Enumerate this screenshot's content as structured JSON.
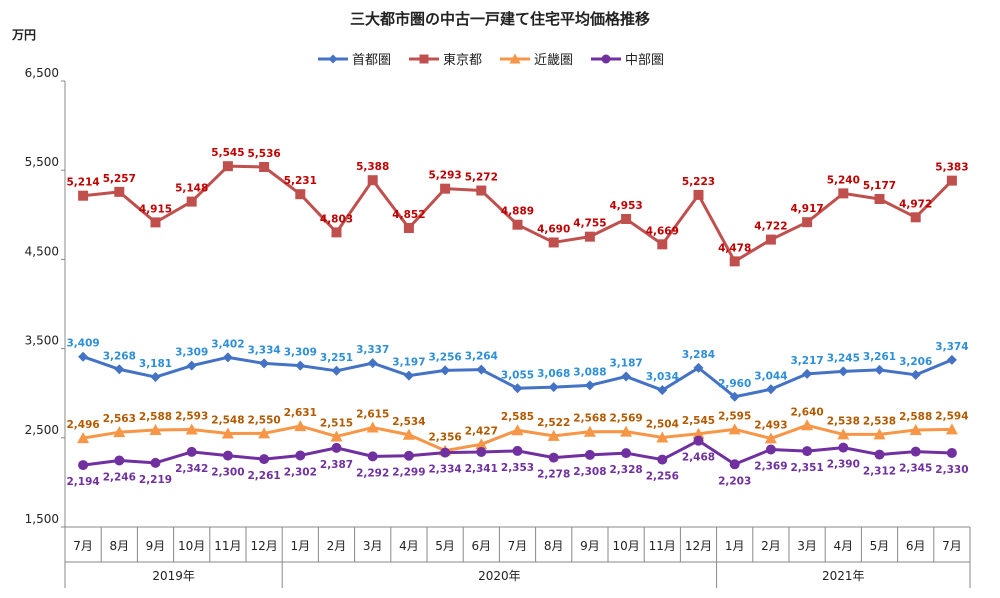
{
  "chart_data": {
    "type": "line",
    "title": "三大都市圏の中古一戸建て住宅平均価格推移",
    "y_unit": "万円",
    "ylim": [
      1500,
      6500
    ],
    "yticks": [
      "1,500",
      "2,500",
      "3,500",
      "4,500",
      "5,500",
      "6,500"
    ],
    "ytick_values": [
      1500,
      2500,
      3500,
      4500,
      5500,
      6500
    ],
    "months": [
      "7月",
      "8月",
      "9月",
      "10月",
      "11月",
      "12月",
      "1月",
      "2月",
      "3月",
      "4月",
      "5月",
      "6月",
      "7月",
      "8月",
      "9月",
      "10月",
      "11月",
      "12月",
      "1月",
      "2月",
      "3月",
      "4月",
      "5月",
      "6月",
      "7月"
    ],
    "years": [
      {
        "label": "2019年",
        "start": 0,
        "end": 5
      },
      {
        "label": "2020年",
        "start": 6,
        "end": 17
      },
      {
        "label": "2021年",
        "start": 18,
        "end": 24
      }
    ],
    "legend_position": "top",
    "series": [
      {
        "name": "首都圏",
        "color": "#4472C4",
        "label_color": "#2E8FD8",
        "marker": "diamond",
        "label_pos": "above",
        "values": [
          3409,
          3268,
          3181,
          3309,
          3402,
          3334,
          3309,
          3251,
          3337,
          3197,
          3256,
          3264,
          3055,
          3068,
          3088,
          3187,
          3034,
          3284,
          2960,
          3044,
          3217,
          3245,
          3261,
          3206,
          3374
        ],
        "labels": [
          "3,409",
          "3,268",
          "3,181",
          "3,309",
          "3,402",
          "3,334",
          "3,309",
          "3,251",
          "3,337",
          "3,197",
          "3,256",
          "3,264",
          "3,055",
          "3,068",
          "3,088",
          "3,187",
          "3,034",
          "3,284",
          "2,960",
          "3,044",
          "3,217",
          "3,245",
          "3,261",
          "3,206",
          "3,374"
        ]
      },
      {
        "name": "東京都",
        "color": "#C0504D",
        "label_color": "#C00000",
        "marker": "square",
        "label_pos": "above",
        "values": [
          5214,
          5257,
          4915,
          5148,
          5545,
          5536,
          5231,
          4803,
          5388,
          4852,
          5293,
          5272,
          4889,
          4690,
          4755,
          4953,
          4669,
          5223,
          4478,
          4722,
          4917,
          5240,
          5177,
          4972,
          5383
        ],
        "labels": [
          "5,214",
          "5,257",
          "4,915",
          "5,148",
          "5,545",
          "5,536",
          "5,231",
          "4,803",
          "5,388",
          "4,852",
          "5,293",
          "5,272",
          "4,889",
          "4,690",
          "4,755",
          "4,953",
          "4,669",
          "5,223",
          "4,478",
          "4,722",
          "4,917",
          "5,240",
          "5,177",
          "4,972",
          "5,383"
        ]
      },
      {
        "name": "近畿圏",
        "color": "#F79646",
        "label_color": "#B35A00",
        "marker": "triangle",
        "label_pos": "above",
        "values": [
          2496,
          2563,
          2588,
          2593,
          2548,
          2550,
          2631,
          2515,
          2615,
          2534,
          2356,
          2427,
          2585,
          2522,
          2568,
          2569,
          2504,
          2545,
          2595,
          2493,
          2640,
          2538,
          2538,
          2588,
          2594
        ],
        "labels": [
          "2,496",
          "2,563",
          "2,588",
          "2,593",
          "2,548",
          "2,550",
          "2,631",
          "2,515",
          "2,615",
          "2,534",
          "2,356",
          "2,427",
          "2,585",
          "2,522",
          "2,568",
          "2,569",
          "2,504",
          "2,545",
          "2,595",
          "2,493",
          "2,640",
          "2,538",
          "2,538",
          "2,588",
          "2,594"
        ]
      },
      {
        "name": "中部圏",
        "color": "#7030A0",
        "label_color": "#7030A0",
        "marker": "circle",
        "label_pos": "below",
        "values": [
          2194,
          2246,
          2219,
          2342,
          2300,
          2261,
          2302,
          2387,
          2292,
          2299,
          2334,
          2341,
          2353,
          2278,
          2308,
          2328,
          2256,
          2468,
          2203,
          2369,
          2351,
          2390,
          2312,
          2345,
          2330
        ],
        "labels": [
          "2,194",
          "2,246",
          "2,219",
          "2,342",
          "2,300",
          "2,261",
          "2,302",
          "2,387",
          "2,292",
          "2,299",
          "2,334",
          "2,341",
          "2,353",
          "2,278",
          "2,308",
          "2,328",
          "2,256",
          "2,468",
          "2,203",
          "2,369",
          "2,351",
          "2,390",
          "2,312",
          "2,345",
          "2,330"
        ]
      }
    ]
  }
}
